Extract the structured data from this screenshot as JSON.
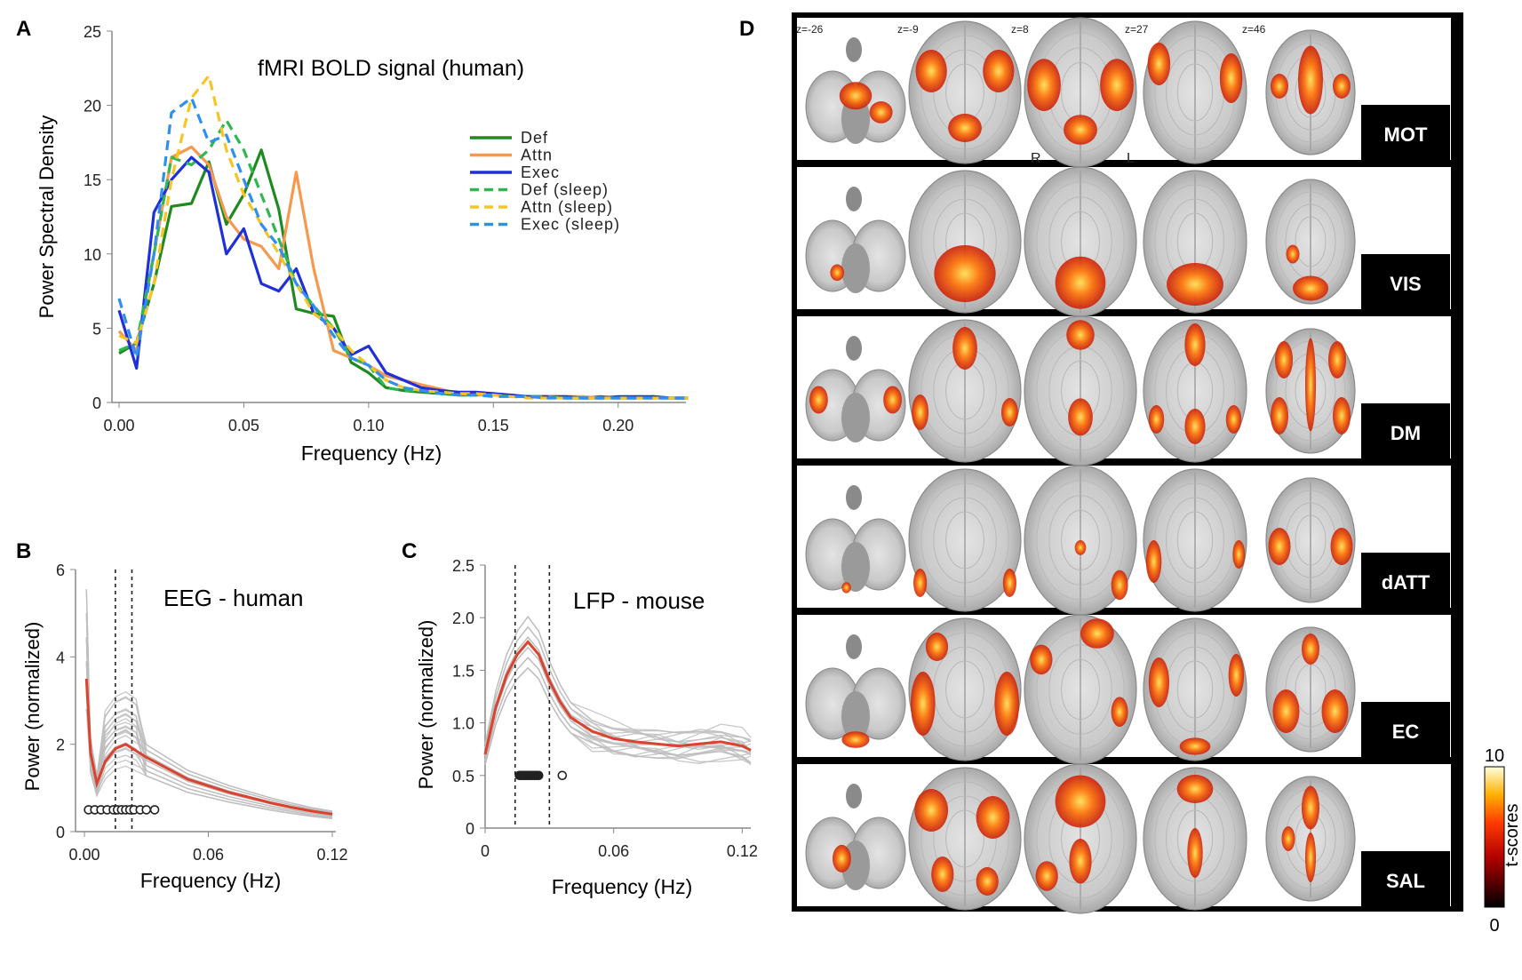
{
  "panel_letters": {
    "A": "A",
    "B": "B",
    "C": "C",
    "D": "D"
  },
  "panel_a": {
    "title": "fMRI BOLD signal (human)",
    "xlabel": "Frequency (Hz)",
    "ylabel": "Power Spectral Density",
    "xticks": [
      "0.00",
      "0.05",
      "0.10",
      "0.15",
      "0.20"
    ],
    "yticks": [
      "0",
      "5",
      "10",
      "15",
      "20",
      "25"
    ]
  },
  "panel_b": {
    "title": "EEG - human",
    "xlabel": "Frequency (Hz)",
    "ylabel": "Power (normalized)",
    "xticks": [
      "0.00",
      "0.06",
      "0.12"
    ],
    "yticks": [
      "0",
      "2",
      "4",
      "6"
    ]
  },
  "panel_c": {
    "title": "LFP - mouse",
    "xlabel": "Frequency (Hz)",
    "ylabel": "Power (normalized)",
    "xticks": [
      "0",
      "0.06",
      "0.12"
    ],
    "yticks": [
      "0",
      "0.5",
      "1.0",
      "1.5",
      "2.0",
      "2.5"
    ]
  },
  "panel_d": {
    "z_labels": [
      "z=-26",
      "z=-9",
      "z=8",
      "z=27",
      "z=46"
    ],
    "hemisphere_labels": [
      "R",
      "L"
    ],
    "networks": [
      "MOT",
      "VIS",
      "DM",
      "dATT",
      "EC",
      "SAL"
    ],
    "colorbar": {
      "label": "t-scores",
      "min_label": "0",
      "max_label": "10"
    }
  },
  "colors": {
    "Def": "#1f8a1f",
    "Attn": "#f5994f",
    "Exec": "#1f2fd9",
    "Def (sleep)": "#2fb84f",
    "Attn (sleep)": "#f7c523",
    "Exec (sleep)": "#2f8ff0",
    "mean_line": "#d9432f",
    "individual_lines": "#bdbdbd"
  },
  "chart_data": [
    {
      "type": "line",
      "title": "fMRI BOLD signal (human)",
      "xlabel": "Frequency (Hz)",
      "ylabel": "Power Spectral Density",
      "xlim": [
        0,
        0.23
      ],
      "ylim": [
        0,
        25
      ],
      "legend_position": "right",
      "x": [
        0.0,
        0.007,
        0.014,
        0.021,
        0.029,
        0.036,
        0.043,
        0.05,
        0.057,
        0.064,
        0.071,
        0.078,
        0.086,
        0.093,
        0.1,
        0.107,
        0.114,
        0.121,
        0.129,
        0.136,
        0.143,
        0.15,
        0.157,
        0.164,
        0.171,
        0.179,
        0.186,
        0.193,
        0.2,
        0.207,
        0.214,
        0.221,
        0.228
      ],
      "series": [
        {
          "name": "Def",
          "style": "solid",
          "values": [
            3.3,
            4.0,
            8.0,
            13.2,
            13.4,
            16.2,
            12.0,
            14.0,
            17.0,
            13.0,
            6.3,
            6.0,
            5.8,
            2.7,
            2.0,
            1.0,
            0.8,
            0.7,
            0.6,
            0.5,
            0.5,
            0.6,
            0.4,
            0.4,
            0.4,
            0.3,
            0.3,
            0.4,
            0.3,
            0.3,
            0.4,
            0.3,
            0.3
          ]
        },
        {
          "name": "Attn",
          "style": "solid",
          "values": [
            4.8,
            3.5,
            10.0,
            16.5,
            17.2,
            16.0,
            12.5,
            11.0,
            10.5,
            9.0,
            15.5,
            9.0,
            3.5,
            3.0,
            2.5,
            1.8,
            1.5,
            1.2,
            0.9,
            0.6,
            0.5,
            0.5,
            0.5,
            0.4,
            0.4,
            0.4,
            0.4,
            0.3,
            0.3,
            0.3,
            0.3,
            0.3,
            0.3
          ]
        },
        {
          "name": "Exec",
          "style": "solid",
          "values": [
            6.2,
            2.3,
            12.8,
            15.0,
            16.5,
            15.5,
            10.0,
            11.7,
            8.0,
            7.5,
            9.0,
            6.0,
            5.0,
            3.2,
            3.8,
            2.0,
            1.5,
            1.0,
            0.8,
            0.7,
            0.7,
            0.6,
            0.5,
            0.4,
            0.4,
            0.4,
            0.3,
            0.3,
            0.4,
            0.4,
            0.4,
            0.3,
            0.3
          ]
        },
        {
          "name": "Def (sleep)",
          "style": "dashed",
          "values": [
            3.5,
            4.0,
            10.0,
            16.5,
            16.0,
            17.0,
            19.0,
            17.0,
            14.0,
            11.0,
            8.0,
            6.5,
            5.0,
            3.0,
            2.5,
            1.0,
            0.8,
            0.8,
            0.6,
            0.5,
            0.5,
            0.5,
            0.4,
            0.4,
            0.4,
            0.3,
            0.3,
            0.3,
            0.3,
            0.3,
            0.3,
            0.3,
            0.3
          ]
        },
        {
          "name": "Attn (sleep)",
          "style": "dashed",
          "values": [
            4.5,
            4.0,
            8.0,
            15.0,
            20.5,
            22.0,
            17.0,
            14.0,
            12.0,
            10.0,
            8.0,
            6.0,
            5.0,
            3.5,
            2.5,
            1.5,
            1.0,
            0.8,
            0.7,
            0.6,
            0.6,
            0.5,
            0.4,
            0.3,
            0.3,
            0.3,
            0.3,
            0.3,
            0.3,
            0.3,
            0.3,
            0.3,
            0.3
          ]
        },
        {
          "name": "Exec (sleep)",
          "style": "dashed",
          "values": [
            7.0,
            3.0,
            10.0,
            19.5,
            20.5,
            17.5,
            18.0,
            15.0,
            12.0,
            10.5,
            8.0,
            6.5,
            4.5,
            3.0,
            2.5,
            1.5,
            1.0,
            0.8,
            0.6,
            0.5,
            0.5,
            0.4,
            0.4,
            0.4,
            0.3,
            0.3,
            0.3,
            0.3,
            0.3,
            0.3,
            0.3,
            0.3,
            0.3
          ]
        }
      ]
    },
    {
      "type": "line",
      "title": "EEG - human",
      "xlabel": "Frequency (Hz)",
      "ylabel": "Power (normalized)",
      "xlim": [
        0,
        0.12
      ],
      "ylim": [
        0,
        6
      ],
      "vlines": [
        0.015,
        0.023
      ],
      "x": [
        0.001,
        0.003,
        0.006,
        0.01,
        0.015,
        0.02,
        0.025,
        0.03,
        0.04,
        0.05,
        0.06,
        0.07,
        0.08,
        0.09,
        0.1,
        0.11,
        0.12
      ],
      "series": [
        {
          "name": "",
          "style": "mean",
          "values": [
            3.5,
            1.8,
            1.1,
            1.6,
            1.9,
            2.0,
            1.85,
            1.7,
            1.45,
            1.2,
            1.05,
            0.9,
            0.78,
            0.66,
            0.56,
            0.47,
            0.4
          ]
        }
      ],
      "markers": {
        "y": 0.5,
        "x": [
          0.002,
          0.005,
          0.008,
          0.011,
          0.014,
          0.016,
          0.018,
          0.02,
          0.022,
          0.024,
          0.027,
          0.03,
          0.034
        ]
      }
    },
    {
      "type": "line",
      "title": "LFP - mouse",
      "xlabel": "Frequency (Hz)",
      "ylabel": "Power (normalized)",
      "xlim": [
        0,
        0.124
      ],
      "ylim": [
        0,
        2.5
      ],
      "vlines": [
        0.014,
        0.03
      ],
      "x": [
        0.0,
        0.005,
        0.01,
        0.015,
        0.02,
        0.025,
        0.03,
        0.035,
        0.04,
        0.05,
        0.06,
        0.07,
        0.08,
        0.09,
        0.1,
        0.11,
        0.12,
        0.124
      ],
      "series": [
        {
          "name": "",
          "style": "mean",
          "values": [
            0.7,
            1.15,
            1.45,
            1.65,
            1.77,
            1.65,
            1.4,
            1.2,
            1.05,
            0.92,
            0.85,
            0.82,
            0.8,
            0.78,
            0.8,
            0.82,
            0.78,
            0.74
          ]
        }
      ],
      "markers": {
        "y": 0.5,
        "x": [
          0.016,
          0.017,
          0.018,
          0.019,
          0.02,
          0.021,
          0.022,
          0.023,
          0.024,
          0.025,
          0.036
        ]
      }
    }
  ]
}
